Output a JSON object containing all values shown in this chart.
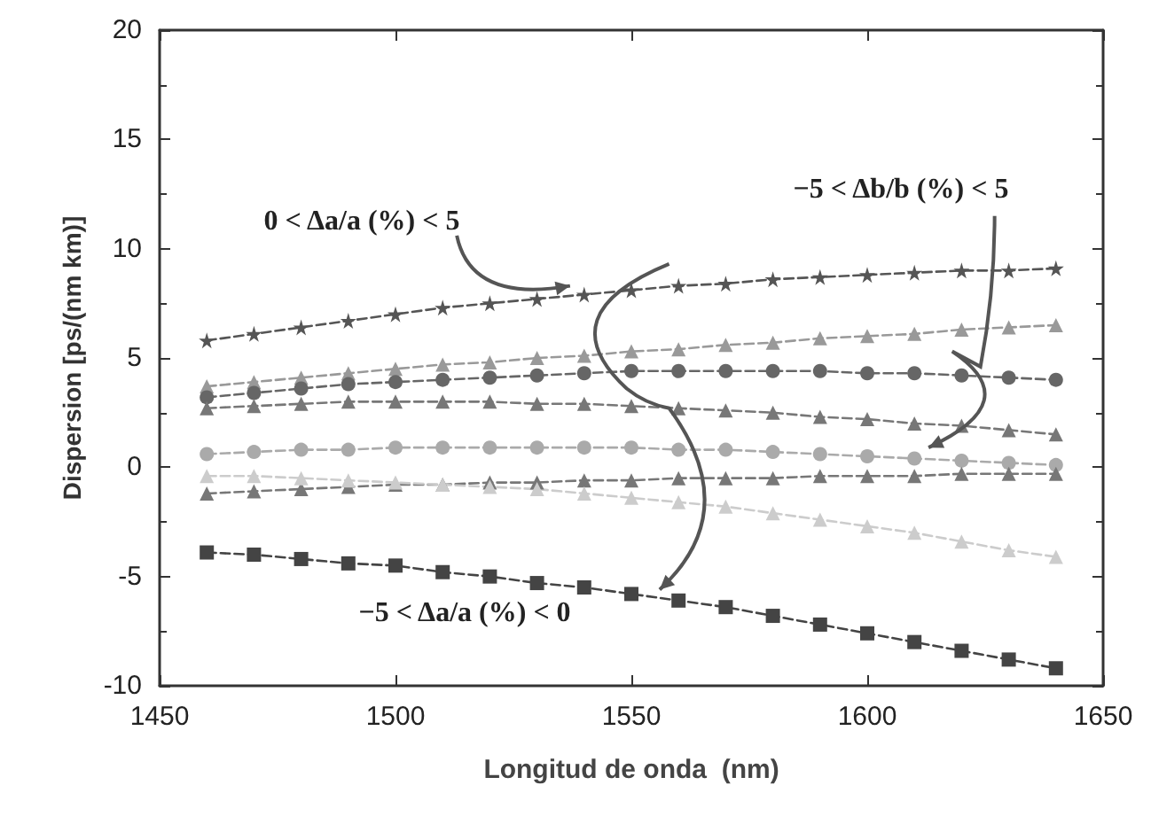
{
  "chart_data": {
    "type": "line",
    "xlabel": "Longitud de onda  (nm)",
    "ylabel": "Dispersion [ps/(nm km)]",
    "x": [
      1460,
      1470,
      1480,
      1490,
      1500,
      1510,
      1520,
      1530,
      1540,
      1550,
      1560,
      1570,
      1580,
      1590,
      1600,
      1610,
      1620,
      1630,
      1640
    ],
    "xlim": [
      1450,
      1650
    ],
    "xticks": [
      1450,
      1500,
      1550,
      1600,
      1650
    ],
    "ylim": [
      -10,
      20
    ],
    "yticks": [
      -10,
      -5,
      0,
      5,
      10,
      15,
      20
    ],
    "line_style": "dashed",
    "series": [
      {
        "color": "#555555",
        "marker": "star",
        "values": [
          5.8,
          6.1,
          6.4,
          6.7,
          7.0,
          7.3,
          7.5,
          7.7,
          7.9,
          8.1,
          8.3,
          8.4,
          8.6,
          8.7,
          8.8,
          8.9,
          9.0,
          9.0,
          9.1
        ]
      },
      {
        "color": "#999999",
        "marker": "triangle",
        "values": [
          3.7,
          3.9,
          4.1,
          4.3,
          4.5,
          4.7,
          4.8,
          5.0,
          5.1,
          5.3,
          5.4,
          5.6,
          5.7,
          5.9,
          6.0,
          6.1,
          6.3,
          6.4,
          6.5
        ]
      },
      {
        "color": "#666666",
        "marker": "circle",
        "values": [
          3.2,
          3.4,
          3.6,
          3.8,
          3.9,
          4.0,
          4.1,
          4.2,
          4.3,
          4.4,
          4.4,
          4.4,
          4.4,
          4.4,
          4.3,
          4.3,
          4.2,
          4.1,
          4.0
        ]
      },
      {
        "color": "#777777",
        "marker": "triangle",
        "values": [
          2.7,
          2.8,
          2.9,
          3.0,
          3.0,
          3.0,
          3.0,
          2.9,
          2.9,
          2.8,
          2.7,
          2.6,
          2.5,
          2.3,
          2.2,
          2.0,
          1.9,
          1.7,
          1.5
        ]
      },
      {
        "color": "#aaaaaa",
        "marker": "circle",
        "values": [
          0.6,
          0.7,
          0.8,
          0.8,
          0.9,
          0.9,
          0.9,
          0.9,
          0.9,
          0.9,
          0.8,
          0.8,
          0.7,
          0.6,
          0.5,
          0.4,
          0.3,
          0.2,
          0.1
        ]
      },
      {
        "color": "#777777",
        "marker": "triangle",
        "values": [
          -1.2,
          -1.1,
          -1.0,
          -0.9,
          -0.8,
          -0.8,
          -0.7,
          -0.7,
          -0.6,
          -0.6,
          -0.5,
          -0.5,
          -0.5,
          -0.4,
          -0.4,
          -0.4,
          -0.3,
          -0.3,
          -0.3
        ]
      },
      {
        "color": "#cccccc",
        "marker": "triangle",
        "values": [
          -0.4,
          -0.4,
          -0.5,
          -0.6,
          -0.7,
          -0.8,
          -0.9,
          -1.0,
          -1.2,
          -1.4,
          -1.6,
          -1.8,
          -2.1,
          -2.4,
          -2.7,
          -3.0,
          -3.4,
          -3.8,
          -4.1
        ]
      },
      {
        "color": "#444444",
        "marker": "square",
        "values": [
          -3.9,
          -4.0,
          -4.2,
          -4.4,
          -4.5,
          -4.8,
          -5.0,
          -5.3,
          -5.5,
          -5.8,
          -6.1,
          -6.4,
          -6.8,
          -7.2,
          -7.6,
          -8.0,
          -8.4,
          -8.8,
          -9.2
        ]
      }
    ],
    "annotations": [
      "0 < Δa/a (%) < 5",
      "−5 < Δb/b (%) < 5",
      "−5 < Δa/a (%) < 0"
    ]
  }
}
